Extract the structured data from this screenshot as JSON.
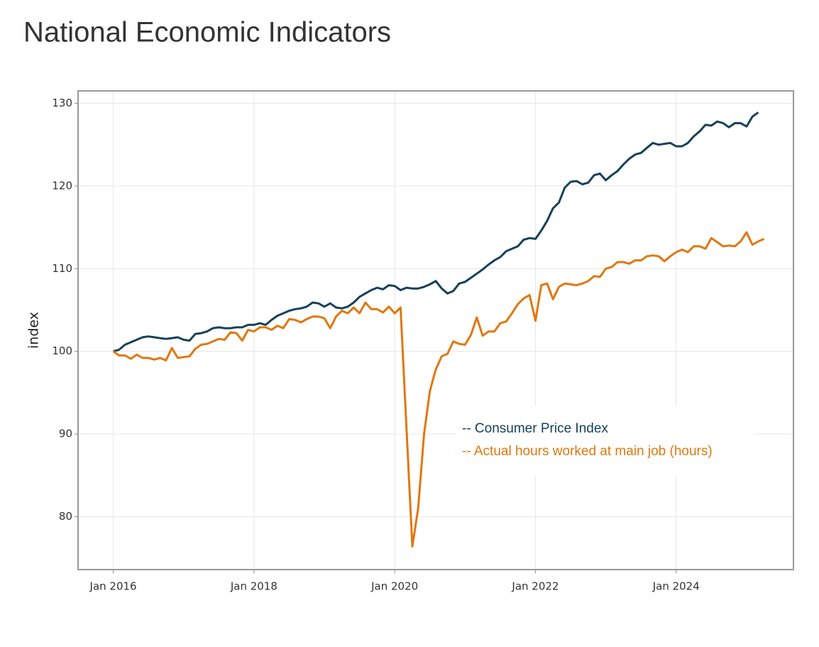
{
  "chart_data": {
    "type": "line",
    "title": "National Economic Indicators",
    "y_label": "index",
    "x": [
      "2016-01",
      "2016-02",
      "2016-03",
      "2016-04",
      "2016-05",
      "2016-06",
      "2016-07",
      "2016-08",
      "2016-09",
      "2016-10",
      "2016-11",
      "2016-12",
      "2017-01",
      "2017-02",
      "2017-03",
      "2017-04",
      "2017-05",
      "2017-06",
      "2017-07",
      "2017-08",
      "2017-09",
      "2017-10",
      "2017-11",
      "2017-12",
      "2018-01",
      "2018-02",
      "2018-03",
      "2018-04",
      "2018-05",
      "2018-06",
      "2018-07",
      "2018-08",
      "2018-09",
      "2018-10",
      "2018-11",
      "2018-12",
      "2019-01",
      "2019-02",
      "2019-03",
      "2019-04",
      "2019-05",
      "2019-06",
      "2019-07",
      "2019-08",
      "2019-09",
      "2019-10",
      "2019-11",
      "2019-12",
      "2020-01",
      "2020-02",
      "2020-03",
      "2020-04",
      "2020-05",
      "2020-06",
      "2020-07",
      "2020-08",
      "2020-09",
      "2020-10",
      "2020-11",
      "2020-12",
      "2021-01",
      "2021-02",
      "2021-03",
      "2021-04",
      "2021-05",
      "2021-06",
      "2021-07",
      "2021-08",
      "2021-09",
      "2021-10",
      "2021-11",
      "2021-12",
      "2022-01",
      "2022-02",
      "2022-03",
      "2022-04",
      "2022-05",
      "2022-06",
      "2022-07",
      "2022-08",
      "2022-09",
      "2022-10",
      "2022-11",
      "2022-12",
      "2023-01",
      "2023-02",
      "2023-03",
      "2023-04",
      "2023-05",
      "2023-06",
      "2023-07",
      "2023-08",
      "2023-09",
      "2023-10",
      "2023-11",
      "2023-12",
      "2024-01",
      "2024-02",
      "2024-03",
      "2024-04",
      "2024-05",
      "2024-06",
      "2024-07",
      "2024-08",
      "2024-09",
      "2024-10",
      "2024-11",
      "2024-12",
      "2025-01",
      "2025-02",
      "2025-03",
      "2025-04"
    ],
    "series": [
      {
        "name": "-- Consumer Price Index",
        "color": "#17405a",
        "values": [
          100,
          100.2,
          100.8,
          101.1,
          101.4,
          101.7,
          101.8,
          101.7,
          101.6,
          101.5,
          101.6,
          101.7,
          101.4,
          101.3,
          102.1,
          102.2,
          102.4,
          102.8,
          102.9,
          102.8,
          102.8,
          102.9,
          102.9,
          103.2,
          103.2,
          103.4,
          103.2,
          103.8,
          104.3,
          104.6,
          104.9,
          105.1,
          105.2,
          105.4,
          105.9,
          105.8,
          105.4,
          105.8,
          105.3,
          105.2,
          105.4,
          105.9,
          106.6,
          107.0,
          107.4,
          107.7,
          107.5,
          108.0,
          107.9,
          107.4,
          107.7,
          107.6,
          107.6,
          107.8,
          108.1,
          108.5,
          107.6,
          107.0,
          107.3,
          108.2,
          108.4,
          108.9,
          109.4,
          109.9,
          110.5,
          111.0,
          111.4,
          112.1,
          112.4,
          112.7,
          113.5,
          113.7,
          113.6,
          114.6,
          115.8,
          117.3,
          118.0,
          119.8,
          120.5,
          120.6,
          120.2,
          120.4,
          121.3,
          121.5,
          120.7,
          121.3,
          121.8,
          122.6,
          123.3,
          123.8,
          124.0,
          124.6,
          125.2,
          125.0,
          125.1,
          125.2,
          124.8,
          124.8,
          125.2,
          126.0,
          126.6,
          127.4,
          127.3,
          127.8,
          127.6,
          127.1,
          127.6,
          127.6,
          127.2,
          128.4,
          128.9,
          null
        ]
      },
      {
        "name": "-- Actual hours worked at main job (hours)",
        "color": "#e0780f",
        "values": [
          100,
          99.5,
          99.5,
          99.1,
          99.6,
          99.2,
          99.2,
          99.0,
          99.2,
          98.9,
          100.4,
          99.2,
          99.3,
          99.4,
          100.3,
          100.8,
          100.9,
          101.2,
          101.5,
          101.4,
          102.3,
          102.2,
          101.3,
          102.6,
          102.4,
          102.9,
          102.9,
          102.6,
          103.1,
          102.8,
          103.9,
          103.8,
          103.5,
          103.9,
          104.2,
          104.2,
          104.0,
          102.8,
          104.2,
          104.9,
          104.6,
          105.3,
          104.6,
          105.9,
          105.1,
          105.1,
          104.7,
          105.4,
          104.6,
          105.3,
          90.8,
          76.4,
          81.0,
          90.0,
          95.2,
          97.8,
          99.4,
          99.7,
          101.2,
          100.9,
          100.8,
          102.0,
          104.1,
          101.9,
          102.4,
          102.4,
          103.4,
          103.6,
          104.6,
          105.7,
          106.4,
          106.8,
          103.7,
          108.0,
          108.2,
          106.3,
          107.8,
          108.2,
          108.1,
          108.0,
          108.2,
          108.5,
          109.1,
          109.0,
          110.0,
          110.2,
          110.8,
          110.8,
          110.6,
          111.0,
          111.0,
          111.5,
          111.6,
          111.5,
          110.9,
          111.5,
          112.0,
          112.3,
          112.0,
          112.7,
          112.7,
          112.4,
          113.7,
          113.2,
          112.7,
          112.8,
          112.7,
          113.3,
          114.4,
          112.9,
          113.3,
          113.6
        ]
      }
    ],
    "xlim": [
      "2015-07",
      "2025-09"
    ],
    "xticks": [
      {
        "value": "2016-01",
        "label": "Jan 2016"
      },
      {
        "value": "2018-01",
        "label": "Jan 2018"
      },
      {
        "value": "2020-01",
        "label": "Jan 2020"
      },
      {
        "value": "2022-01",
        "label": "Jan 2022"
      },
      {
        "value": "2024-01",
        "label": "Jan 2024"
      }
    ],
    "ylim": [
      73.6,
      131.5
    ],
    "yticks": [
      80,
      90,
      100,
      110,
      120,
      130
    ],
    "grid": true,
    "legend_position": "lower right"
  }
}
